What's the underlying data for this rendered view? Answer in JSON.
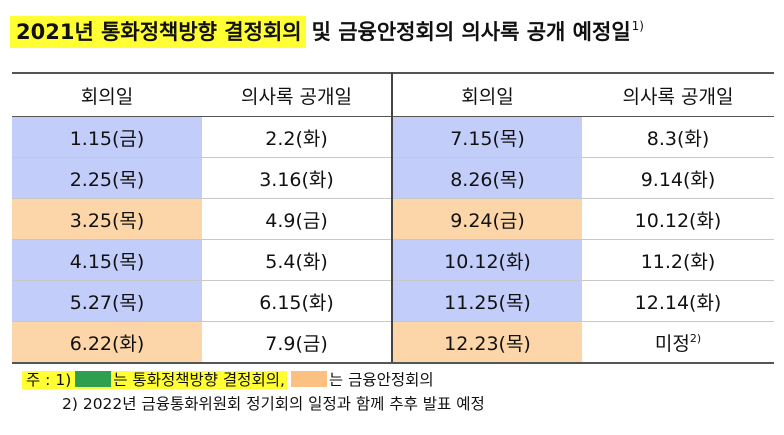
{
  "title": {
    "highlight": "2021년 통화정책방향 결정회의",
    "rest": "및 금융안정회의 의사록 공개 예정일",
    "footnote_mark": "1)"
  },
  "table": {
    "headers": [
      "회의일",
      "의사록 공개일",
      "회의일",
      "의사록 공개일"
    ],
    "rows": [
      {
        "d1": "1.15(금)",
        "p1": "2.2(화)",
        "t1": "monetary",
        "d2": "7.15(목)",
        "p2": "8.3(화)",
        "t2": "monetary"
      },
      {
        "d1": "2.25(목)",
        "p1": "3.16(화)",
        "t1": "monetary",
        "d2": "8.26(목)",
        "p2": "9.14(화)",
        "t2": "monetary"
      },
      {
        "d1": "3.25(목)",
        "p1": "4.9(금)",
        "t1": "financial",
        "d2": "9.24(금)",
        "p2": "10.12(화)",
        "t2": "financial"
      },
      {
        "d1": "4.15(목)",
        "p1": "5.4(화)",
        "t1": "monetary",
        "d2": "10.12(화)",
        "p2": "11.2(화)",
        "t2": "monetary"
      },
      {
        "d1": "5.27(목)",
        "p1": "6.15(화)",
        "t1": "monetary",
        "d2": "11.25(목)",
        "p2": "12.14(화)",
        "t2": "monetary"
      },
      {
        "d1": "6.22(화)",
        "p1": "7.9(금)",
        "t1": "financial",
        "d2": "12.23(목)",
        "p2": "미정",
        "p2_mark": "2)",
        "t2": "financial"
      }
    ]
  },
  "colors": {
    "monetary_cell": "#c3cdfa",
    "financial_cell": "#fcd6a8",
    "highlight": "#ffff33",
    "legend_green": "#2e9e4f",
    "legend_orange": "#fcc080"
  },
  "notes": {
    "prefix": "주 : 1)",
    "monetary_label": "는 통화정책방향 결정회의,",
    "financial_label": "는 금융안정회의",
    "note2": "2) 2022년 금융통화위원회 정기회의 일정과 함께 추후 발표 예정"
  }
}
